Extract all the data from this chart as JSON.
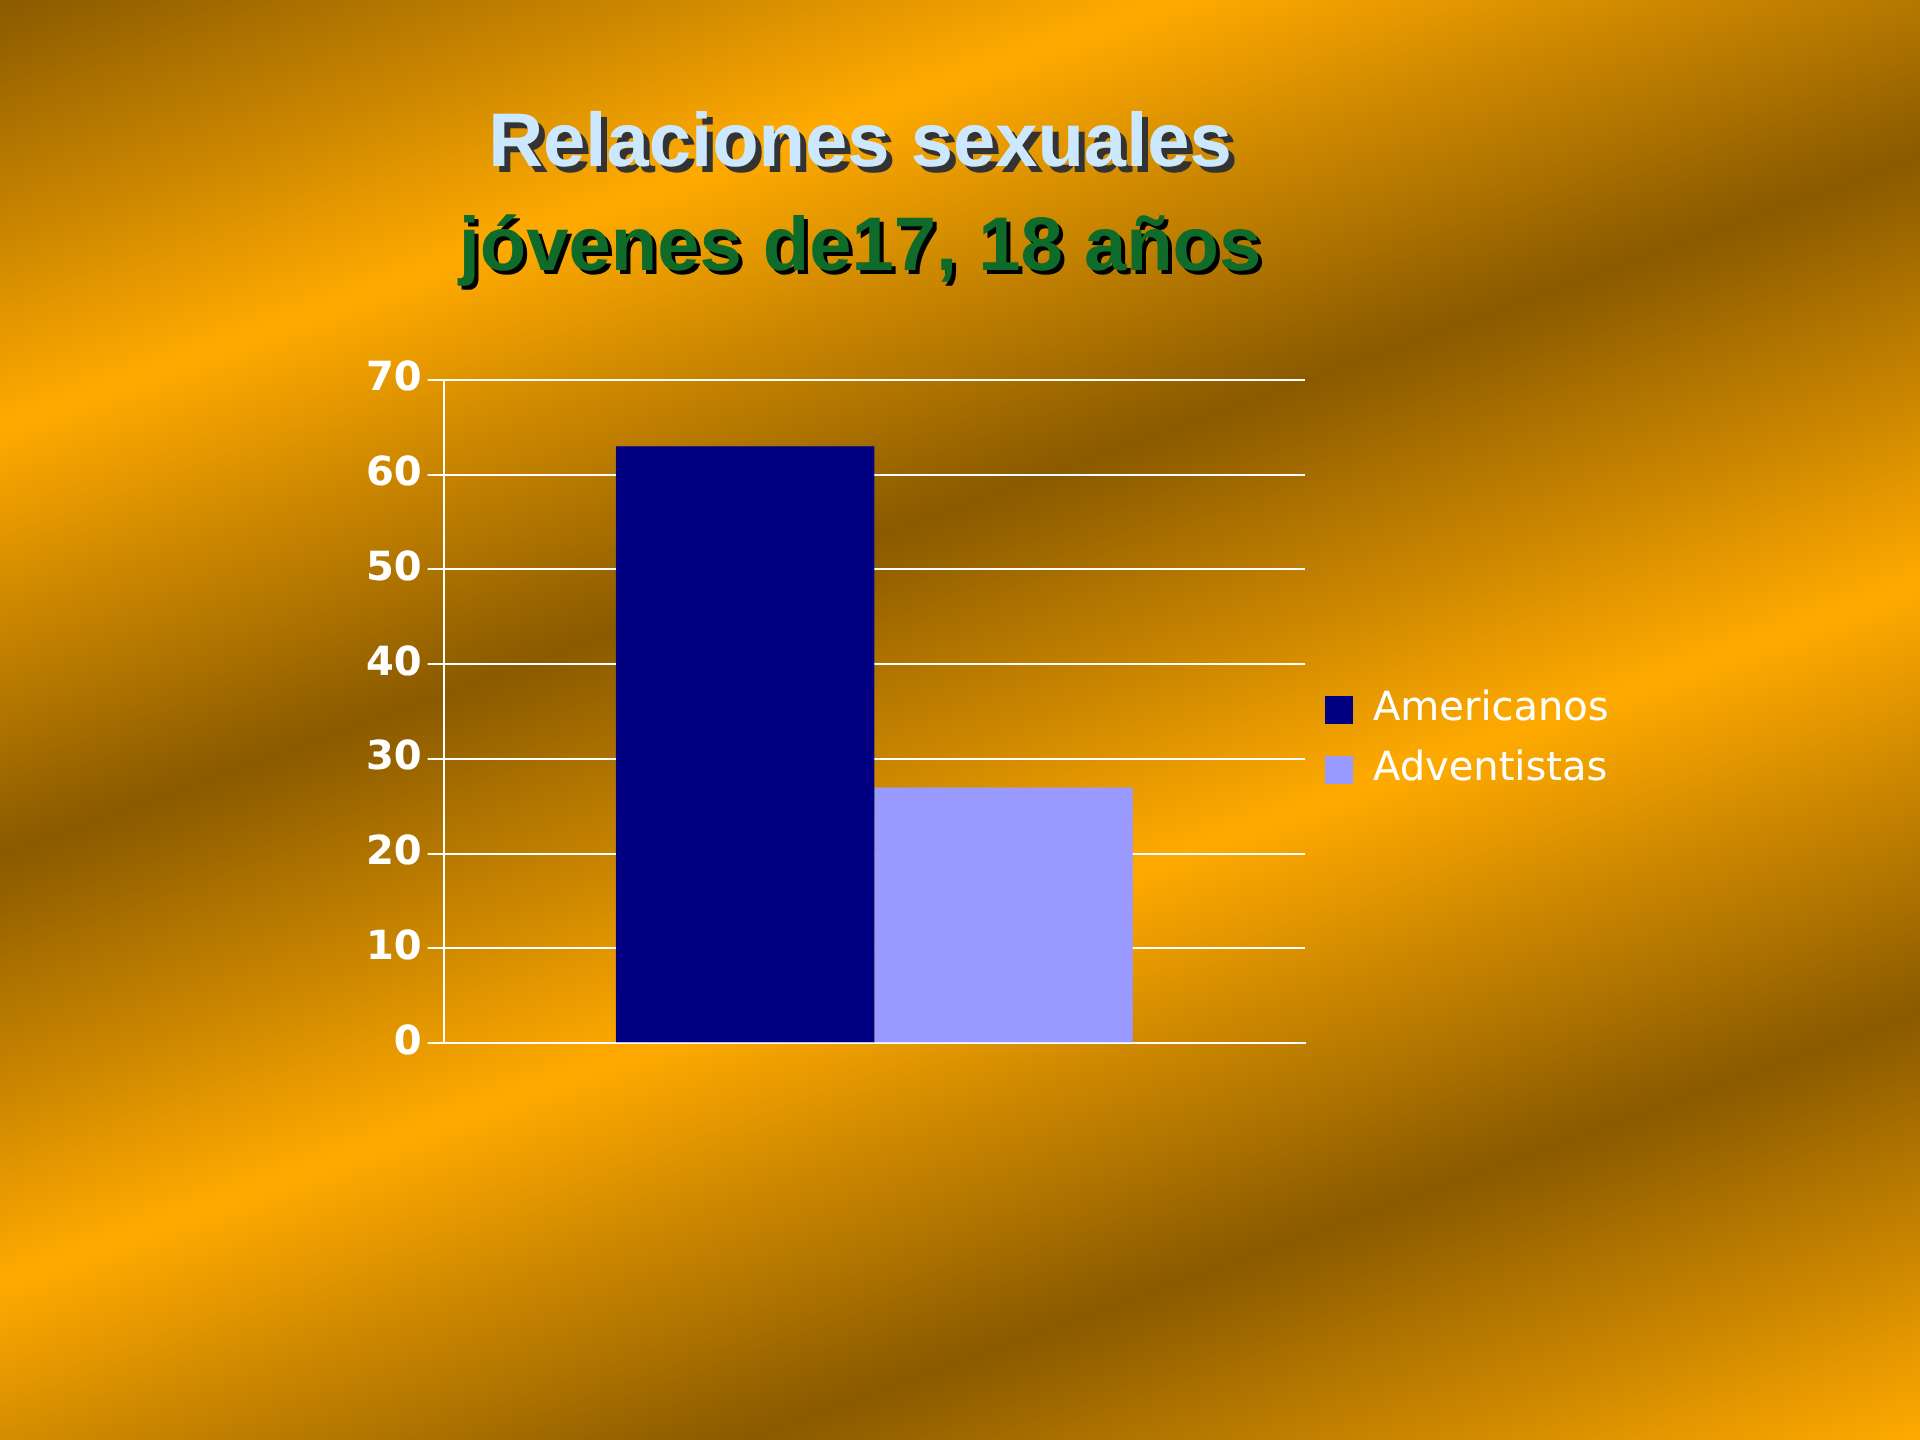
{
  "chart_data": {
    "type": "bar",
    "title": "Relaciones sexuales",
    "subtitle": "jóvenes de17, 18 años",
    "categories": [
      null
    ],
    "series": [
      {
        "name": "Americanos",
        "color": "#000080",
        "values": [
          63
        ]
      },
      {
        "name": "Adventistas",
        "color": "#9999ff",
        "values": [
          27
        ]
      }
    ],
    "ylim": [
      0,
      70
    ],
    "yticks": [
      0,
      10,
      20,
      30,
      40,
      50,
      60,
      70
    ],
    "grid": "y",
    "legend": "right"
  }
}
